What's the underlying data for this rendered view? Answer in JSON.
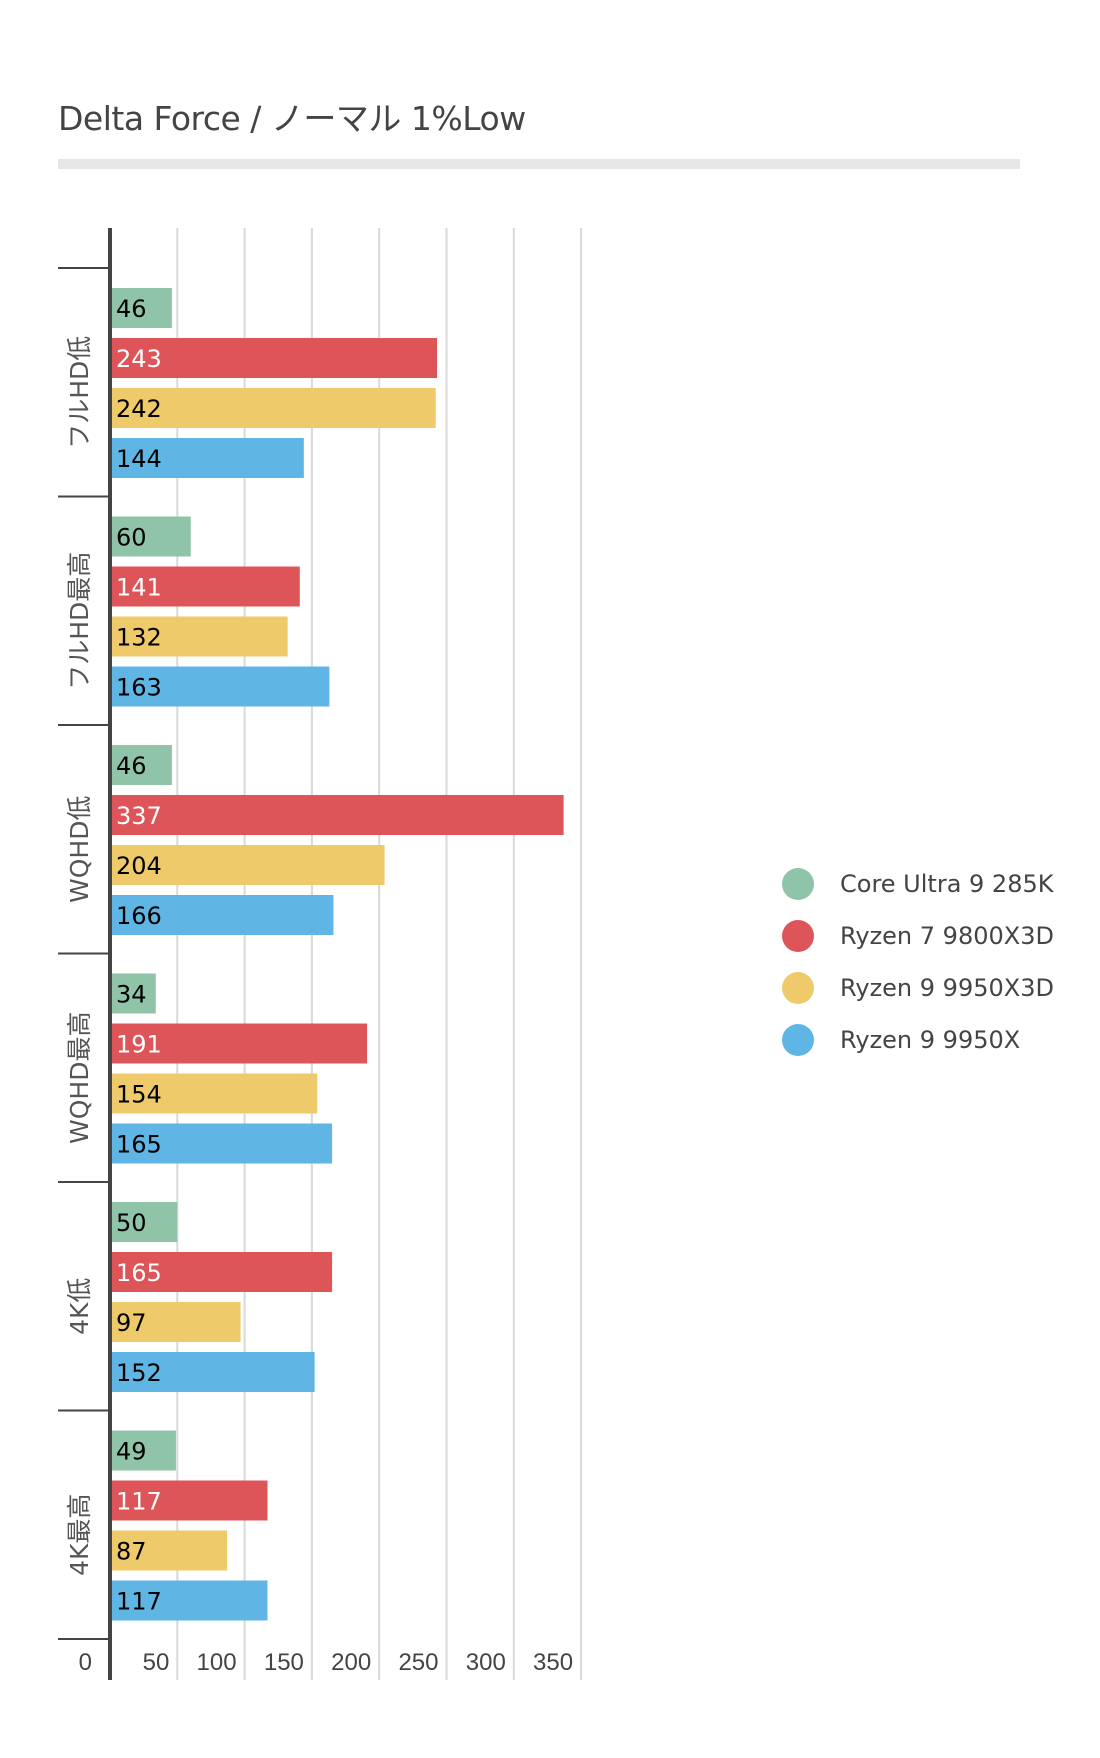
{
  "chart_data": {
    "type": "bar",
    "orientation": "horizontal",
    "title": "Delta Force / ノーマル 1%Low",
    "xlabel": "",
    "ylabel": "",
    "xlim": [
      0,
      350
    ],
    "x_ticks": [
      0,
      50,
      100,
      150,
      200,
      250,
      300,
      350
    ],
    "grid": true,
    "legend_position": "right",
    "categories": [
      "フルHD低",
      "フルHD最高",
      "WQHD低",
      "WQHD最高",
      "4K低",
      "4K最高"
    ],
    "series": [
      {
        "name": "Core Ultra 9 285K",
        "color": "#8fc4a8",
        "label_color": "#000000",
        "values": [
          46,
          60,
          46,
          34,
          50,
          49
        ]
      },
      {
        "name": "Ryzen 7 9800X3D",
        "color": "#dd5558",
        "label_color": "#ffffff",
        "values": [
          243,
          141,
          337,
          191,
          165,
          117
        ]
      },
      {
        "name": "Ryzen 9 9950X3D",
        "color": "#efca6a",
        "label_color": "#000000",
        "values": [
          242,
          132,
          204,
          154,
          97,
          87
        ]
      },
      {
        "name": "Ryzen 9 9950X",
        "color": "#5fb6e4",
        "label_color": "#000000",
        "values": [
          144,
          163,
          166,
          165,
          152,
          117
        ]
      }
    ]
  }
}
